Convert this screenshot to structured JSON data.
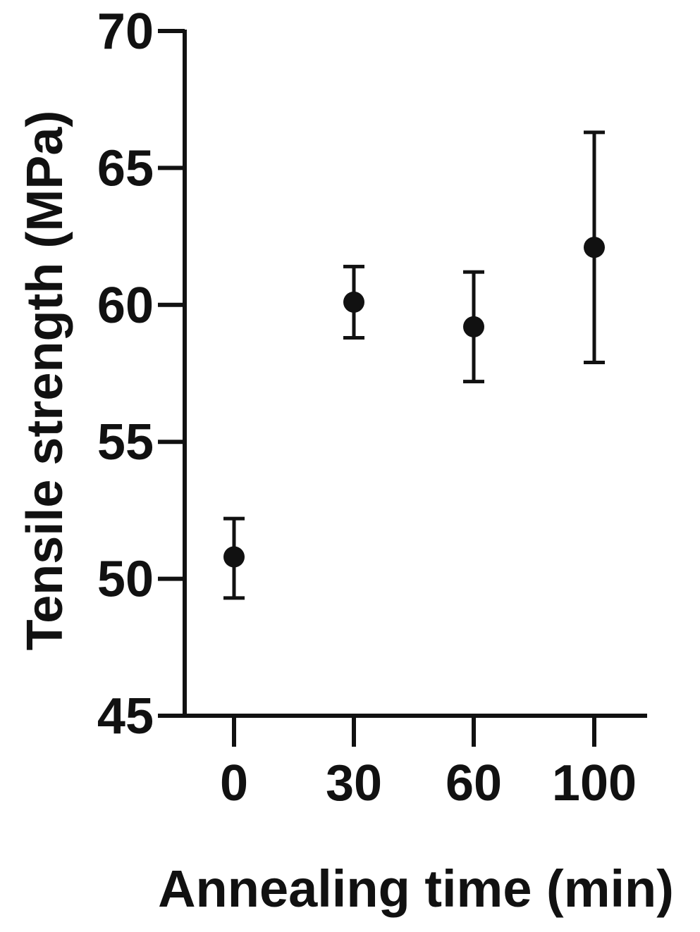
{
  "chart_data": {
    "type": "scatter",
    "title": "",
    "xlabel": "Annealing time (min)",
    "ylabel": "Tensile strength (MPa)",
    "x_axis_kind": "categorical",
    "categories": [
      "0",
      "30",
      "60",
      "100"
    ],
    "values": [
      50.8,
      60.1,
      59.2,
      62.1
    ],
    "error_upper": [
      52.2,
      61.4,
      61.2,
      66.3
    ],
    "error_lower": [
      49.3,
      58.8,
      57.2,
      57.9
    ],
    "ylim": [
      45,
      70
    ],
    "yticks": [
      "45",
      "50",
      "55",
      "60",
      "65",
      "70"
    ],
    "grid": false,
    "legend": "none",
    "colors": {
      "marker": "#111111",
      "axis": "#111111",
      "text": "#111111",
      "background": "#ffffff"
    }
  }
}
